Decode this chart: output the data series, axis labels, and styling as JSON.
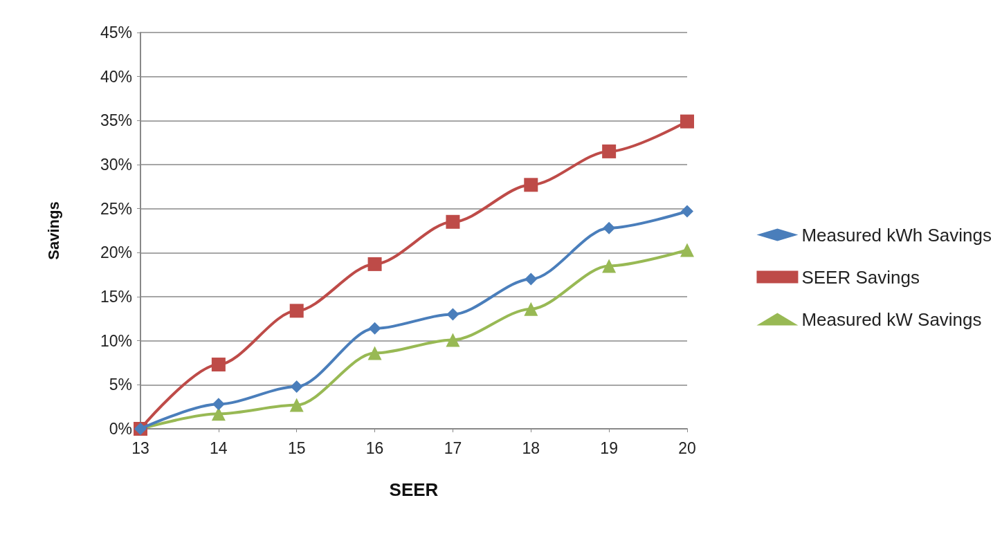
{
  "chart_data": {
    "type": "line",
    "xlabel": "SEER",
    "ylabel": "Savings",
    "x": [
      13,
      14,
      15,
      16,
      17,
      18,
      19,
      20
    ],
    "series": [
      {
        "name": "Measured kWh Savings",
        "color": "#4a7ebb",
        "marker": "diamond",
        "values": [
          0,
          2.8,
          4.8,
          11.4,
          13.0,
          17.0,
          22.8,
          24.7
        ]
      },
      {
        "name": "SEER Savings",
        "color": "#be4b48",
        "marker": "square",
        "values": [
          0,
          7.3,
          13.4,
          18.7,
          23.5,
          27.7,
          31.5,
          34.9
        ]
      },
      {
        "name": "Measured kW Savings",
        "color": "#98b954",
        "marker": "triangle",
        "values": [
          0,
          1.7,
          2.7,
          8.6,
          10.1,
          13.6,
          18.5,
          20.3
        ]
      }
    ],
    "xlim": [
      13,
      20
    ],
    "xticks": [
      13,
      14,
      15,
      16,
      17,
      18,
      19,
      20
    ],
    "ylim": [
      0,
      45
    ],
    "yticks": [
      {
        "value": 0,
        "label": "0%"
      },
      {
        "value": 5,
        "label": "5%"
      },
      {
        "value": 10,
        "label": "10%"
      },
      {
        "value": 15,
        "label": "15%"
      },
      {
        "value": 20,
        "label": "20%"
      },
      {
        "value": 25,
        "label": "25%"
      },
      {
        "value": 30,
        "label": "30%"
      },
      {
        "value": 35,
        "label": "35%"
      },
      {
        "value": 40,
        "label": "40%"
      },
      {
        "value": 45,
        "label": "45%"
      }
    ],
    "grid": "y",
    "legend": "right"
  }
}
